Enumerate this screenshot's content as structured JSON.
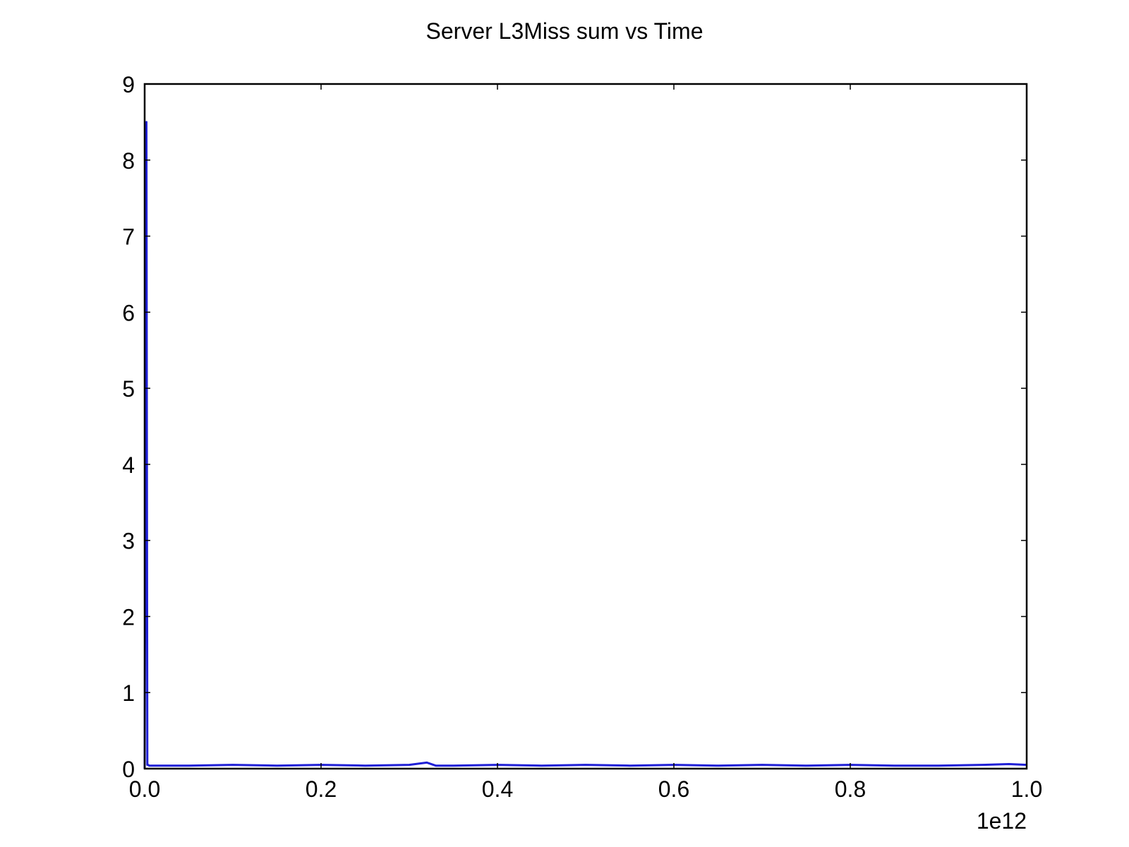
{
  "chart_data": {
    "type": "line",
    "title": "Server L3Miss sum vs Time",
    "xlabel": "",
    "ylabel": "",
    "x_offset_label": "1e12",
    "xlim": [
      0.0,
      1.0
    ],
    "ylim": [
      0,
      9
    ],
    "x_ticks": [
      0.0,
      0.2,
      0.4,
      0.6,
      0.8,
      1.0
    ],
    "x_tick_labels": [
      "0.0",
      "0.2",
      "0.4",
      "0.6",
      "0.8",
      "1.0"
    ],
    "y_ticks": [
      0,
      1,
      2,
      3,
      4,
      5,
      6,
      7,
      8,
      9
    ],
    "y_tick_labels": [
      "0",
      "1",
      "2",
      "3",
      "4",
      "5",
      "6",
      "7",
      "8",
      "9"
    ],
    "grid": false,
    "series": [
      {
        "color": "#1f1fd6",
        "x": [
          0.0,
          0.002,
          0.003,
          0.004,
          0.005,
          0.05,
          0.1,
          0.15,
          0.2,
          0.25,
          0.3,
          0.32,
          0.33,
          0.35,
          0.4,
          0.45,
          0.5,
          0.55,
          0.6,
          0.65,
          0.7,
          0.75,
          0.8,
          0.85,
          0.9,
          0.95,
          0.98,
          1.0
        ],
        "values": [
          0.0,
          8.5,
          0.05,
          0.05,
          0.04,
          0.04,
          0.05,
          0.04,
          0.05,
          0.04,
          0.05,
          0.08,
          0.04,
          0.04,
          0.05,
          0.04,
          0.05,
          0.04,
          0.05,
          0.04,
          0.05,
          0.04,
          0.05,
          0.04,
          0.04,
          0.05,
          0.06,
          0.05
        ]
      }
    ]
  }
}
